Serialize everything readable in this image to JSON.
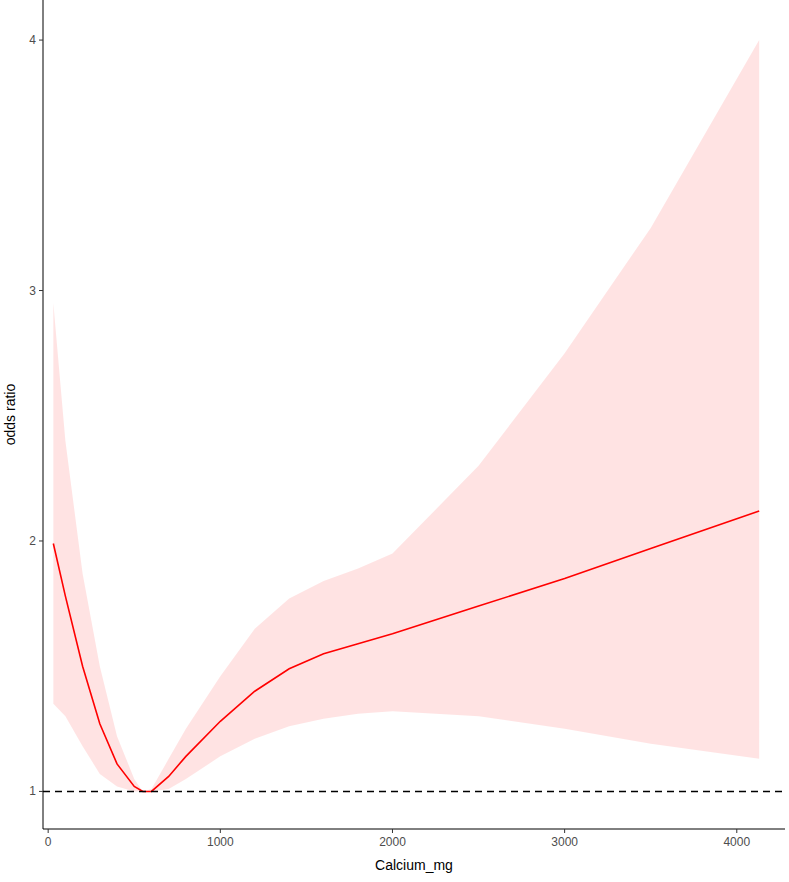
{
  "chart_data": {
    "type": "line",
    "x_label": "Calcium_mg",
    "y_label": "odds ratio",
    "x": [
      30,
      100,
      200,
      300,
      400,
      500,
      550,
      600,
      700,
      800,
      1000,
      1200,
      1400,
      1600,
      1800,
      2000,
      2500,
      3000,
      3500,
      4130
    ],
    "series": [
      {
        "color": "#ff0000",
        "values": [
          1.99,
          1.78,
          1.5,
          1.27,
          1.11,
          1.02,
          1.0,
          1.0,
          1.06,
          1.14,
          1.28,
          1.4,
          1.49,
          1.55,
          1.59,
          1.63,
          1.74,
          1.85,
          1.97,
          2.12
        ],
        "lower": [
          1.35,
          1.3,
          1.18,
          1.07,
          1.02,
          1.0,
          1.0,
          1.0,
          1.01,
          1.05,
          1.14,
          1.21,
          1.26,
          1.29,
          1.31,
          1.32,
          1.3,
          1.25,
          1.19,
          1.13
        ],
        "upper": [
          2.95,
          2.4,
          1.87,
          1.5,
          1.22,
          1.05,
          1.0,
          1.01,
          1.13,
          1.25,
          1.46,
          1.65,
          1.77,
          1.84,
          1.89,
          1.95,
          2.3,
          2.75,
          3.25,
          4.0
        ]
      }
    ],
    "reference": {
      "value": 1,
      "line_style": "dashed",
      "color": "#000000"
    },
    "xlim": [
      -30,
      4280
    ],
    "xticks": [
      0,
      1000,
      2000,
      3000,
      4000
    ],
    "ylim": [
      0.85,
      4.16
    ],
    "yticks": [
      1,
      2,
      3,
      4
    ],
    "grid": false
  }
}
